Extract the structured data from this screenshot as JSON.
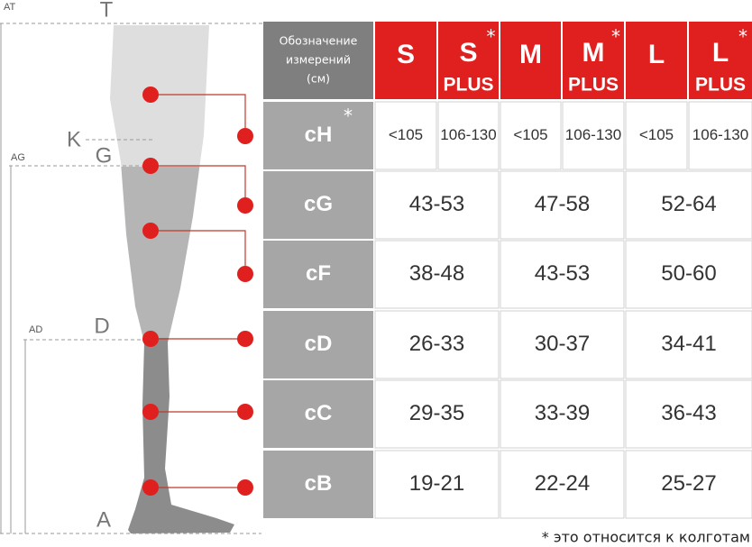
{
  "diagram": {
    "labels": [
      "AT",
      "T",
      "K",
      "G",
      "AG",
      "AD",
      "D",
      "A"
    ]
  },
  "table": {
    "header": {
      "title": [
        "Обозначение",
        "измерений",
        "(см)"
      ],
      "sizes": [
        {
          "size": "S"
        },
        {
          "size": "S",
          "star": "*",
          "plus": "PLUS"
        },
        {
          "size": "M"
        },
        {
          "size": "M",
          "star": "*",
          "plus": "PLUS"
        },
        {
          "size": "L"
        },
        {
          "size": "L",
          "star": "*",
          "plus": "PLUS"
        }
      ]
    },
    "rows": [
      {
        "label": "cH",
        "star": "*",
        "cells": [
          "<105",
          "106-130",
          "<105",
          "106-130",
          "<105",
          "106-130"
        ]
      },
      {
        "label": "cG",
        "cells": [
          "43-53",
          "47-58",
          "52-64"
        ]
      },
      {
        "label": "cF",
        "cells": [
          "38-48",
          "43-53",
          "50-60"
        ]
      },
      {
        "label": "cD",
        "cells": [
          "26-33",
          "30-37",
          "34-41"
        ]
      },
      {
        "label": "cC",
        "cells": [
          "29-35",
          "33-39",
          "36-43"
        ]
      },
      {
        "label": "cB",
        "cells": [
          "19-21",
          "22-24",
          "25-27"
        ]
      }
    ]
  },
  "footnote": "* это относится к колготам"
}
